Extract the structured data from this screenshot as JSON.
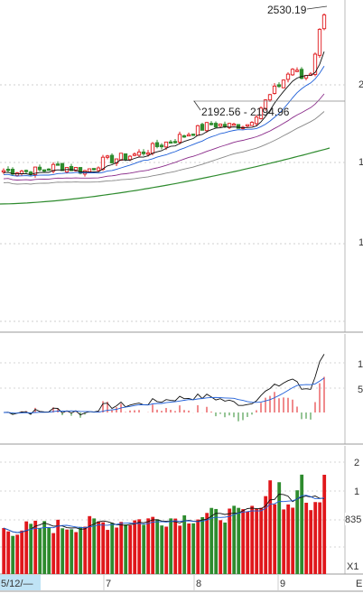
{
  "chart_data": [
    {
      "type": "line",
      "panel": "price",
      "annotations": {
        "high_label": "2530.19",
        "range_label": "2192.56 - 2194.96"
      },
      "right_axis_ticks": [
        "2",
        "1",
        "1"
      ],
      "colors": {
        "up": "#e0171b",
        "down": "#2e8b2e",
        "ma_black": "#111111",
        "ma_blue": "#1f5fd8",
        "ma_purple": "#8a2b8a",
        "ma_gray": "#888888",
        "ma_green": "#2e8b2e"
      }
    },
    {
      "type": "bar",
      "panel": "indicator",
      "right_axis_ticks": [
        "1",
        "5"
      ]
    },
    {
      "type": "bar",
      "panel": "volume",
      "right_axis_ticks": [
        "2",
        "1"
      ],
      "value_tag": "835",
      "x_tick_labels": [
        "5/12/—",
        "7",
        "8",
        "9"
      ],
      "corner_label": "X1",
      "corner_right": "E"
    }
  ]
}
